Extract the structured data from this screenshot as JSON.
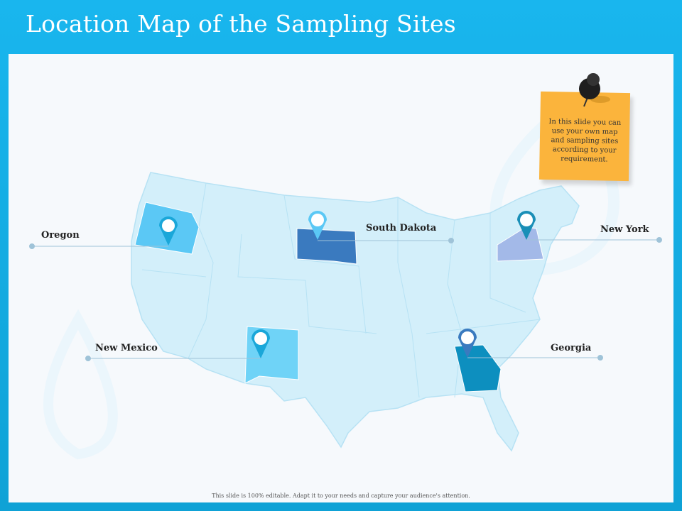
{
  "title": "Location Map of the Sampling Sites",
  "note": {
    "text": "In this slide you can use your own map and sampling sites according to your requirement.",
    "color": "#fbb43c",
    "icon": "push-pin-icon"
  },
  "sites": [
    {
      "label": "Oregon",
      "color": "#5bc8f5"
    },
    {
      "label": "South Dakota",
      "color": "#3a7abf"
    },
    {
      "label": "New York",
      "color": "#a3b9e8"
    },
    {
      "label": "New Mexico",
      "color": "#6fd3f7"
    },
    {
      "label": "Georgia",
      "color": "#0d8fbf"
    }
  ],
  "map_color": "#d3effa",
  "footer": "This slide is 100% editable. Adapt it to your needs and capture your audience's attention."
}
